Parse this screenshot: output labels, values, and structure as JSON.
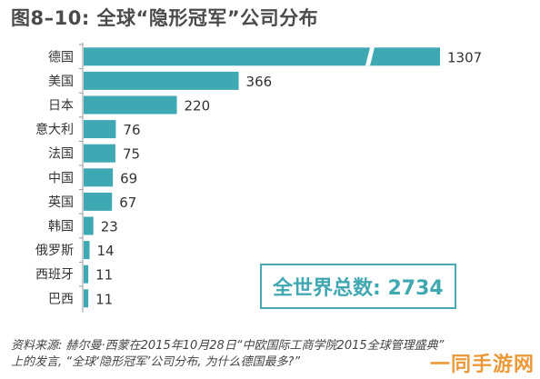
{
  "chart_data": {
    "type": "bar",
    "orientation": "horizontal",
    "title": "图8–10: 全球“隐形冠军”公司分布",
    "categories": [
      "德国",
      "美国",
      "日本",
      "意大利",
      "法国",
      "中国",
      "英国",
      "韩国",
      "俄罗斯",
      "西班牙",
      "巴西"
    ],
    "values": [
      1307,
      366,
      220,
      76,
      75,
      69,
      67,
      23,
      14,
      11,
      11
    ],
    "value_labels": [
      "1307",
      "366",
      "220",
      "76",
      "75",
      "69",
      "67",
      "23",
      "14",
      "11",
      "11"
    ],
    "axis_break_on_first_bar": true,
    "bar_color": "#3fa9b3",
    "grid": false,
    "legend": "none"
  },
  "total_box": {
    "text": "全世界总数: 2734"
  },
  "source_note": {
    "text": "资料来源: 赫尔曼·西蒙在2015年10月28日“中欧国际工商学院2015全球管理盛典”\n上的发言, “全球‘隐形冠军’公司分布, 为什么德国最多?”"
  },
  "watermark": {
    "text": "一同手游网"
  }
}
